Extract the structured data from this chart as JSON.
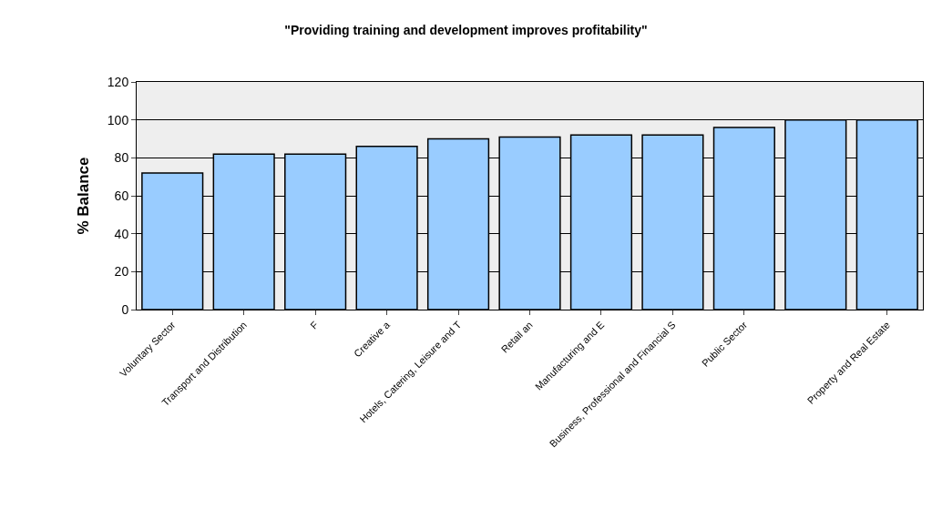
{
  "chart_data": {
    "type": "bar",
    "title": "\"Providing training and development improves profitability\"",
    "ylabel": "% Balance",
    "categories": [
      "Voluntary Sector",
      "Transport and Distribution",
      "F",
      "Creative a",
      "Hotels, Catering, Leisure and T",
      "Retail an",
      "Manufacturing and E",
      "Business, Professional and Financial S",
      "Public Sector",
      null,
      "Property and Real Estate"
    ],
    "values": [
      72,
      82,
      82,
      86,
      90,
      91,
      92,
      92,
      96,
      100,
      100
    ],
    "color": "#99ccff",
    "ylim": [
      0,
      120
    ],
    "yticks": [
      0,
      20,
      40,
      60,
      80,
      100,
      120
    ],
    "grid": "y",
    "legend": false
  }
}
